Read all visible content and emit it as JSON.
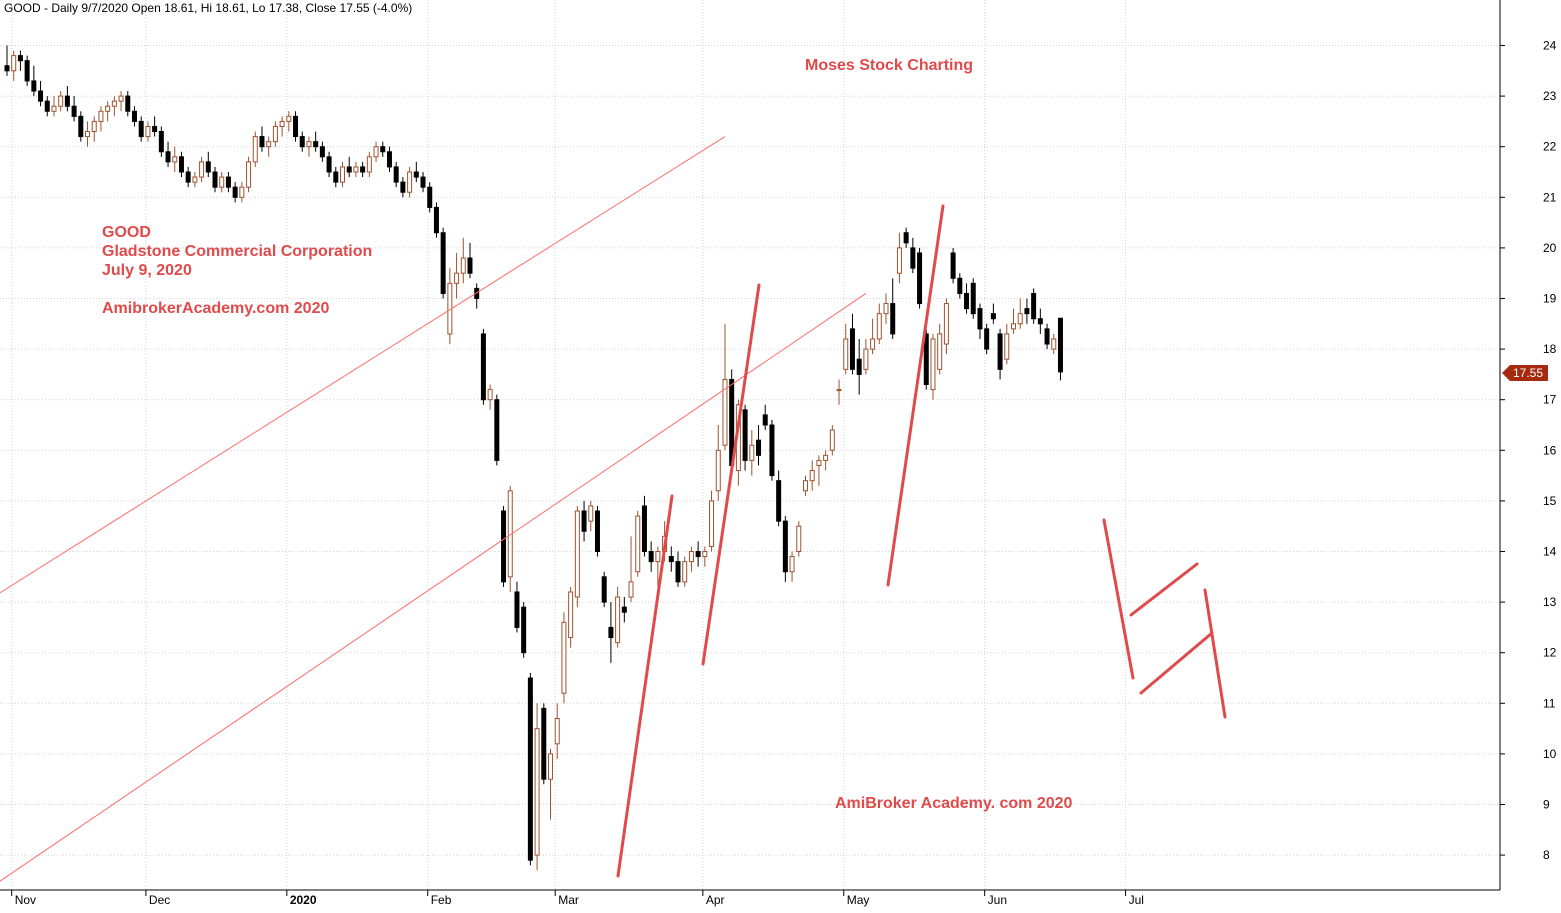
{
  "chart_data": {
    "type": "candlestick",
    "header": "GOOD - Daily 9/7/2020 Open 18.61, Hi 18.61, Lo 17.38, Close 17.55 (-4.0%)",
    "ylim": [
      7.3,
      24.9
    ],
    "y_ticks": [
      8,
      9,
      10,
      11,
      12,
      13,
      14,
      15,
      16,
      17,
      18,
      19,
      20,
      21,
      22,
      23,
      24
    ],
    "x_labels": [
      "Nov",
      "Dec",
      "2020",
      "Feb",
      "Mar",
      "Apr",
      "May",
      "Jun",
      "Jul"
    ],
    "last_price_label": "17.55",
    "grid": true,
    "colors": {
      "up": "#a0522d",
      "down": "#000000",
      "annotation": "#e04a4a",
      "channel": "#ff6b6b"
    },
    "ohlc": [
      [
        23.6,
        24.0,
        23.4,
        23.5
      ],
      [
        23.5,
        23.9,
        23.3,
        23.8
      ],
      [
        23.8,
        23.9,
        23.5,
        23.7
      ],
      [
        23.7,
        23.8,
        23.2,
        23.3
      ],
      [
        23.3,
        23.6,
        23.0,
        23.1
      ],
      [
        23.1,
        23.3,
        22.8,
        22.9
      ],
      [
        22.9,
        23.0,
        22.6,
        22.7
      ],
      [
        22.7,
        23.0,
        22.6,
        22.8
      ],
      [
        22.8,
        23.1,
        22.7,
        23.0
      ],
      [
        23.0,
        23.2,
        22.7,
        22.8
      ],
      [
        22.8,
        23.0,
        22.5,
        22.6
      ],
      [
        22.6,
        22.7,
        22.1,
        22.2
      ],
      [
        22.2,
        22.5,
        22.0,
        22.3
      ],
      [
        22.3,
        22.6,
        22.1,
        22.5
      ],
      [
        22.5,
        22.8,
        22.3,
        22.7
      ],
      [
        22.7,
        22.9,
        22.5,
        22.8
      ],
      [
        22.8,
        23.0,
        22.6,
        22.9
      ],
      [
        22.9,
        23.1,
        22.7,
        23.0
      ],
      [
        23.0,
        23.1,
        22.6,
        22.7
      ],
      [
        22.7,
        22.8,
        22.4,
        22.5
      ],
      [
        22.5,
        22.6,
        22.1,
        22.2
      ],
      [
        22.2,
        22.5,
        22.1,
        22.4
      ],
      [
        22.4,
        22.6,
        22.2,
        22.3
      ],
      [
        22.3,
        22.4,
        21.8,
        21.9
      ],
      [
        21.9,
        22.1,
        21.6,
        21.7
      ],
      [
        21.7,
        22.0,
        21.5,
        21.8
      ],
      [
        21.8,
        21.9,
        21.4,
        21.5
      ],
      [
        21.5,
        21.6,
        21.2,
        21.3
      ],
      [
        21.3,
        21.5,
        21.2,
        21.4
      ],
      [
        21.4,
        21.8,
        21.3,
        21.7
      ],
      [
        21.7,
        21.9,
        21.4,
        21.5
      ],
      [
        21.5,
        21.6,
        21.1,
        21.2
      ],
      [
        21.2,
        21.5,
        21.1,
        21.4
      ],
      [
        21.4,
        21.5,
        21.1,
        21.2
      ],
      [
        21.2,
        21.3,
        20.9,
        21.0
      ],
      [
        21.0,
        21.3,
        20.9,
        21.2
      ],
      [
        21.2,
        21.8,
        21.1,
        21.7
      ],
      [
        21.7,
        22.3,
        21.6,
        22.2
      ],
      [
        22.2,
        22.4,
        21.9,
        22.0
      ],
      [
        22.0,
        22.2,
        21.8,
        22.1
      ],
      [
        22.1,
        22.5,
        22.0,
        22.4
      ],
      [
        22.4,
        22.6,
        22.2,
        22.5
      ],
      [
        22.5,
        22.7,
        22.3,
        22.6
      ],
      [
        22.6,
        22.7,
        22.1,
        22.2
      ],
      [
        22.2,
        22.3,
        21.9,
        22.0
      ],
      [
        22.0,
        22.2,
        21.8,
        22.1
      ],
      [
        22.1,
        22.3,
        21.9,
        22.0
      ],
      [
        22.0,
        22.1,
        21.7,
        21.8
      ],
      [
        21.8,
        21.9,
        21.4,
        21.5
      ],
      [
        21.5,
        21.6,
        21.2,
        21.3
      ],
      [
        21.3,
        21.7,
        21.2,
        21.6
      ],
      [
        21.6,
        21.8,
        21.4,
        21.5
      ],
      [
        21.5,
        21.7,
        21.4,
        21.6
      ],
      [
        21.6,
        21.7,
        21.4,
        21.5
      ],
      [
        21.5,
        21.9,
        21.4,
        21.8
      ],
      [
        21.8,
        22.1,
        21.7,
        22.0
      ],
      [
        22.0,
        22.1,
        21.8,
        21.9
      ],
      [
        21.9,
        22.0,
        21.5,
        21.6
      ],
      [
        21.6,
        21.7,
        21.2,
        21.3
      ],
      [
        21.3,
        21.4,
        21.0,
        21.1
      ],
      [
        21.1,
        21.6,
        21.0,
        21.5
      ],
      [
        21.5,
        21.7,
        21.3,
        21.4
      ],
      [
        21.4,
        21.5,
        21.1,
        21.2
      ],
      [
        21.2,
        21.3,
        20.7,
        20.8
      ],
      [
        20.8,
        20.9,
        20.2,
        20.3
      ],
      [
        20.3,
        20.4,
        19.0,
        19.1
      ],
      [
        18.3,
        19.6,
        18.1,
        19.3
      ],
      [
        19.3,
        19.9,
        19.0,
        19.5
      ],
      [
        19.5,
        20.2,
        19.3,
        19.8
      ],
      [
        19.8,
        20.1,
        19.4,
        19.5
      ],
      [
        19.2,
        19.3,
        18.8,
        19.0
      ],
      [
        18.3,
        18.4,
        16.9,
        17.0
      ],
      [
        17.0,
        17.3,
        16.8,
        17.2
      ],
      [
        17.0,
        17.1,
        15.7,
        15.8
      ],
      [
        14.8,
        14.9,
        13.3,
        13.4
      ],
      [
        13.5,
        15.3,
        13.2,
        15.2
      ],
      [
        13.2,
        13.4,
        12.4,
        12.5
      ],
      [
        12.9,
        13.0,
        11.9,
        12.0
      ],
      [
        11.5,
        11.6,
        7.8,
        7.9
      ],
      [
        8.0,
        11.0,
        7.7,
        10.5
      ],
      [
        10.9,
        11.0,
        9.4,
        9.5
      ],
      [
        9.5,
        10.1,
        8.7,
        10.0
      ],
      [
        10.2,
        11.0,
        9.9,
        10.7
      ],
      [
        11.2,
        12.8,
        11.0,
        12.6
      ],
      [
        12.3,
        13.3,
        12.1,
        13.2
      ],
      [
        13.1,
        14.9,
        12.9,
        14.8
      ],
      [
        14.8,
        15.0,
        14.2,
        14.4
      ],
      [
        14.6,
        15.0,
        14.4,
        14.9
      ],
      [
        14.8,
        14.9,
        13.9,
        14.0
      ],
      [
        13.5,
        13.6,
        12.9,
        13.0
      ],
      [
        12.5,
        13.0,
        11.8,
        12.3
      ],
      [
        12.2,
        13.3,
        12.1,
        13.1
      ],
      [
        12.9,
        13.1,
        12.6,
        12.8
      ],
      [
        13.1,
        14.3,
        13.0,
        13.4
      ],
      [
        13.6,
        14.8,
        13.5,
        14.7
      ],
      [
        14.9,
        15.1,
        13.9,
        14.0
      ],
      [
        14.0,
        14.2,
        13.6,
        13.8
      ],
      [
        13.8,
        14.1,
        13.3,
        14.0
      ],
      [
        14.0,
        14.6,
        13.8,
        14.3
      ],
      [
        13.9,
        14.1,
        13.6,
        13.8
      ],
      [
        13.8,
        14.0,
        13.3,
        13.4
      ],
      [
        13.4,
        13.9,
        13.3,
        13.8
      ],
      [
        13.8,
        14.1,
        13.6,
        14.0
      ],
      [
        14.0,
        14.2,
        13.7,
        13.9
      ],
      [
        13.9,
        14.1,
        13.7,
        14.0
      ],
      [
        14.1,
        15.2,
        14.0,
        15.0
      ],
      [
        15.2,
        16.5,
        15.0,
        16.0
      ],
      [
        16.1,
        18.5,
        16.0,
        17.4
      ],
      [
        17.4,
        17.6,
        15.6,
        15.7
      ],
      [
        15.6,
        17.0,
        15.3,
        16.9
      ],
      [
        16.8,
        16.9,
        15.6,
        15.8
      ],
      [
        15.8,
        16.4,
        15.5,
        16.1
      ],
      [
        16.2,
        16.5,
        15.7,
        15.9
      ],
      [
        16.7,
        16.9,
        16.4,
        16.5
      ],
      [
        16.5,
        16.6,
        15.4,
        15.5
      ],
      [
        15.4,
        15.6,
        14.5,
        14.6
      ],
      [
        14.6,
        14.7,
        13.4,
        13.6
      ],
      [
        13.6,
        14.0,
        13.4,
        13.9
      ],
      [
        14.0,
        14.6,
        13.9,
        14.5
      ],
      [
        15.2,
        15.5,
        15.1,
        15.4
      ],
      [
        15.4,
        15.8,
        15.2,
        15.6
      ],
      [
        15.7,
        15.9,
        15.3,
        15.8
      ],
      [
        15.8,
        16.0,
        15.6,
        15.9
      ],
      [
        16.0,
        16.5,
        15.9,
        16.4
      ],
      [
        17.2,
        17.4,
        16.9,
        17.2
      ],
      [
        17.6,
        18.5,
        17.5,
        18.2
      ],
      [
        18.4,
        18.7,
        17.5,
        17.6
      ],
      [
        17.8,
        18.2,
        17.1,
        17.5
      ],
      [
        17.6,
        18.2,
        17.5,
        18.0
      ],
      [
        18.0,
        18.6,
        17.9,
        18.2
      ],
      [
        18.2,
        18.9,
        18.1,
        18.7
      ],
      [
        18.7,
        19.1,
        18.5,
        18.9
      ],
      [
        18.9,
        19.4,
        18.2,
        18.3
      ],
      [
        19.5,
        20.3,
        19.3,
        20.0
      ],
      [
        20.3,
        20.4,
        20.0,
        20.1
      ],
      [
        20.0,
        20.2,
        19.5,
        19.6
      ],
      [
        19.9,
        20.0,
        18.8,
        18.9
      ],
      [
        18.3,
        18.4,
        17.2,
        17.3
      ],
      [
        17.2,
        18.3,
        17.0,
        18.2
      ],
      [
        17.6,
        18.5,
        17.5,
        18.3
      ],
      [
        18.1,
        19.0,
        17.9,
        18.9
      ],
      [
        19.9,
        20.0,
        19.3,
        19.4
      ],
      [
        19.4,
        19.5,
        19.0,
        19.1
      ],
      [
        19.1,
        19.3,
        18.7,
        18.8
      ],
      [
        19.3,
        19.4,
        18.6,
        18.7
      ],
      [
        18.8,
        18.9,
        18.2,
        18.4
      ],
      [
        18.4,
        18.5,
        17.9,
        18.0
      ],
      [
        18.7,
        18.9,
        18.5,
        18.6
      ],
      [
        18.3,
        18.4,
        17.4,
        17.6
      ],
      [
        17.8,
        18.5,
        17.7,
        18.3
      ],
      [
        18.4,
        18.8,
        18.3,
        18.5
      ],
      [
        18.5,
        19.0,
        18.4,
        18.7
      ],
      [
        18.8,
        19.0,
        18.5,
        18.7
      ],
      [
        19.1,
        19.2,
        18.5,
        18.6
      ],
      [
        18.6,
        18.8,
        18.3,
        18.5
      ],
      [
        18.4,
        18.5,
        18.0,
        18.1
      ],
      [
        18.0,
        18.3,
        17.9,
        18.2
      ],
      [
        18.61,
        18.61,
        17.38,
        17.55
      ]
    ],
    "channel_lines": [
      {
        "name": "channel-upper",
        "from": [
          -32,
          10.6
        ],
        "to": [
          107,
          22.2
        ]
      },
      {
        "name": "channel-lower",
        "from": [
          -2,
          7.4
        ],
        "to": [
          128,
          19.1
        ]
      }
    ],
    "annotations": {
      "title": "Moses Stock Charting",
      "ticker": "GOOD",
      "company": "Gladstone Commercial Corporation",
      "date": "July 9, 2020",
      "site1": "AmibrokerAcademy.com  2020",
      "site2": "AmiBroker Academy. com  2020"
    }
  }
}
